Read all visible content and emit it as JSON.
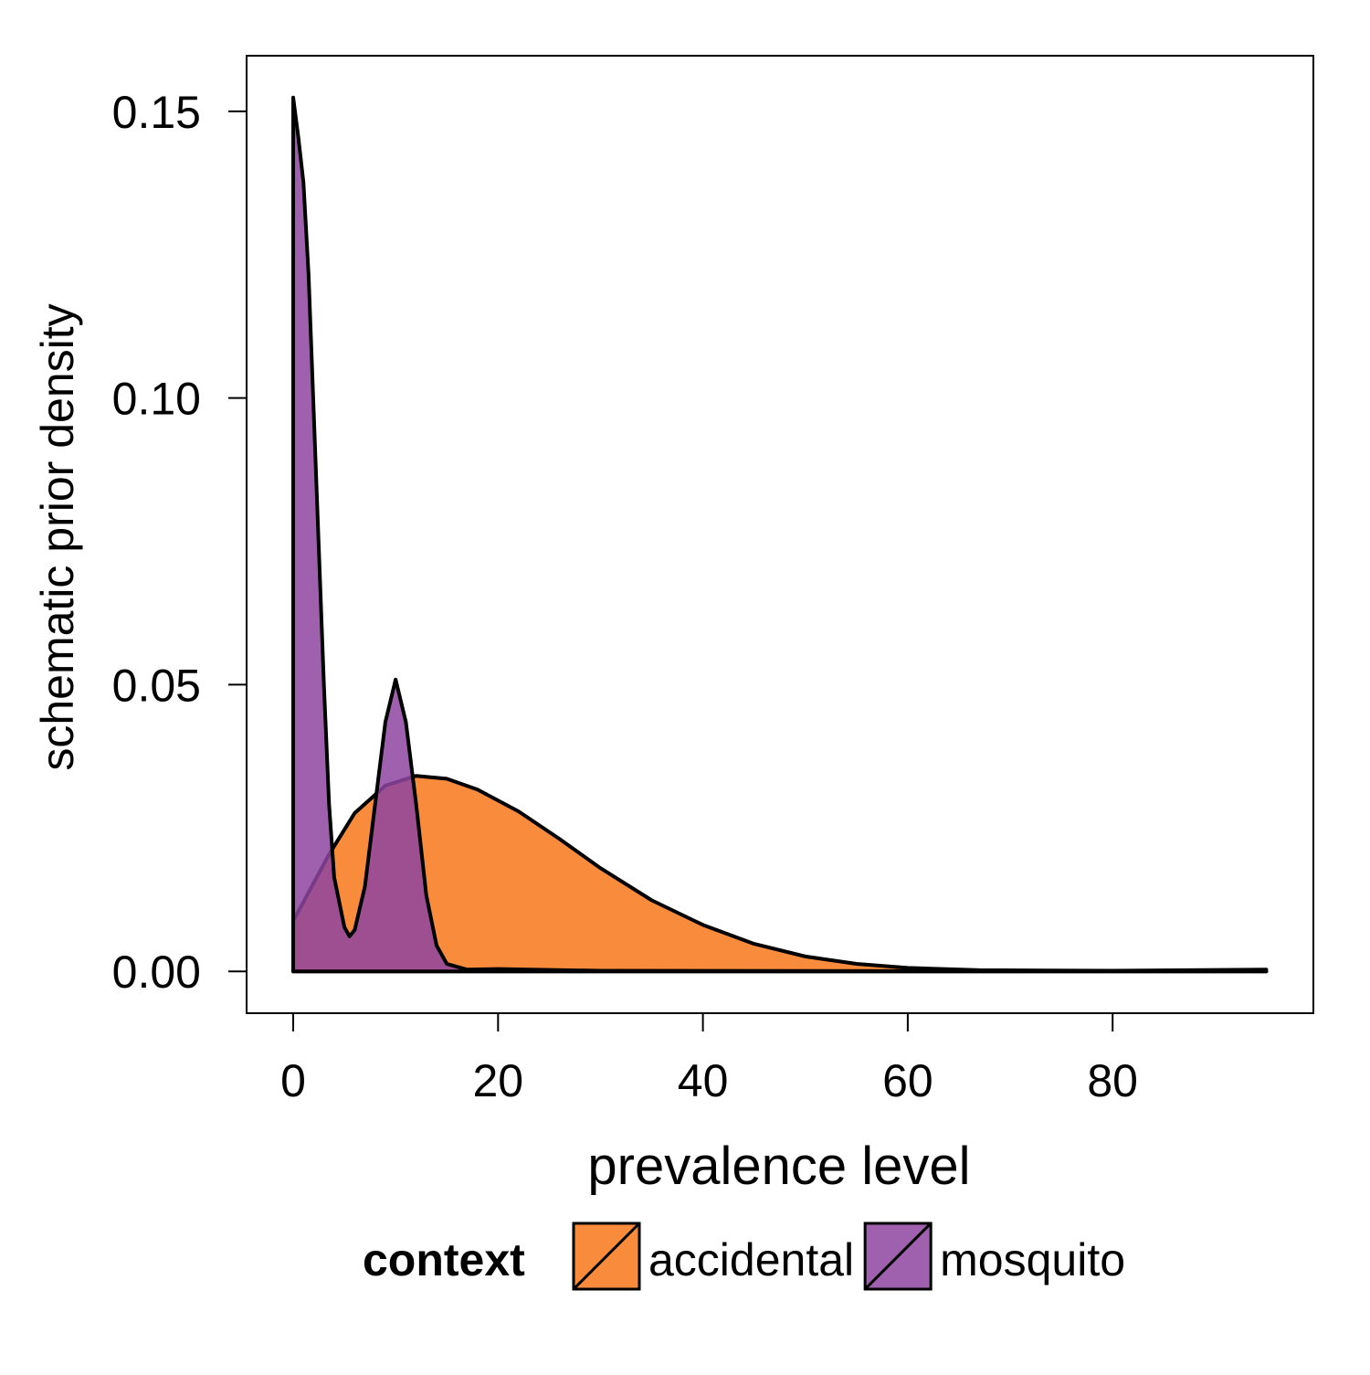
{
  "chart_data": {
    "type": "area",
    "x_label": "prevalence level",
    "y_label": "schematic prior density",
    "legend_title": "context",
    "legend_position": "bottom",
    "xlim": [
      -4.55,
      99.6
    ],
    "xticks": [
      0,
      20,
      40,
      60,
      80
    ],
    "ylim": [
      -0.0073,
      0.1597
    ],
    "yticks": [
      {
        "value": 0,
        "label": "0.00"
      },
      {
        "value": 0.05,
        "label": "0.05"
      },
      {
        "value": 0.1,
        "label": "0.10"
      },
      {
        "value": 0.15,
        "label": "0.15"
      }
    ],
    "series": [
      {
        "name": "accidental",
        "color": "#f98b3c",
        "opacity": 1,
        "x": [
          0,
          3.5,
          6,
          9,
          12,
          15,
          18,
          22,
          26,
          30,
          35,
          40,
          45,
          50,
          55,
          60,
          67,
          80,
          95
        ],
        "values": [
          0.0088,
          0.0204,
          0.0276,
          0.0324,
          0.0341,
          0.0336,
          0.0317,
          0.0279,
          0.0231,
          0.018,
          0.0124,
          0.0081,
          0.0048,
          0.0026,
          0.0013,
          0.0006,
          0.0002,
          0.0001,
          0.0003
        ]
      },
      {
        "name": "mosquito",
        "color": "#8e44a0",
        "opacity": 0.85,
        "x": [
          0,
          0.5,
          1,
          1.5,
          2,
          2.5,
          3,
          3.5,
          4,
          5,
          5.5,
          6,
          7,
          8,
          9,
          10,
          11,
          12,
          13,
          14,
          15,
          17,
          20,
          30,
          95
        ],
        "values": [
          0.1524,
          0.1455,
          0.1376,
          0.1216,
          0.0977,
          0.0738,
          0.0499,
          0.0292,
          0.0164,
          0.0077,
          0.0061,
          0.0072,
          0.0148,
          0.0292,
          0.0435,
          0.0509,
          0.0435,
          0.0292,
          0.0132,
          0.0045,
          0.0013,
          0.0003,
          0.0004,
          0.0001,
          0
        ]
      }
    ]
  }
}
